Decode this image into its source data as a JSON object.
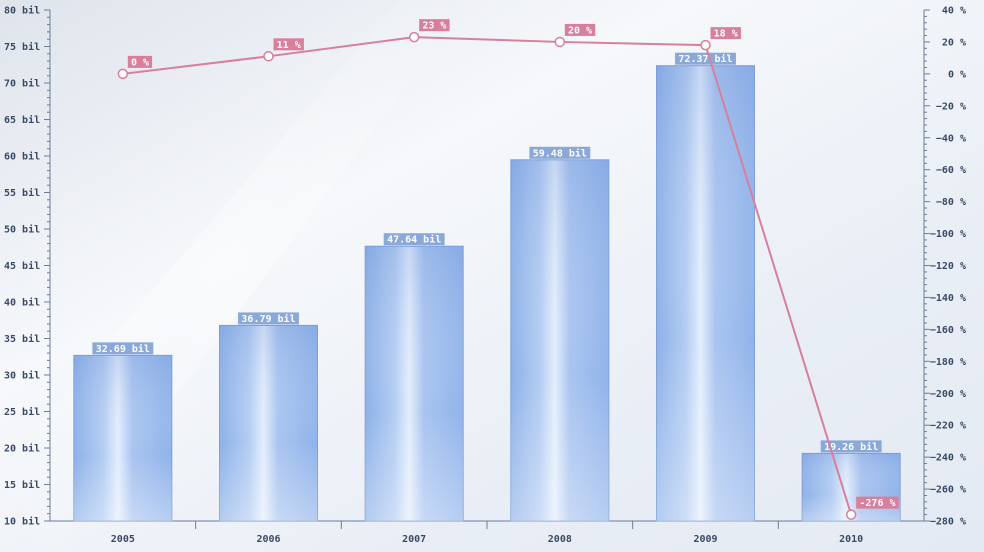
{
  "chart_data": {
    "type": "bar",
    "categories": [
      "2005",
      "2006",
      "2007",
      "2008",
      "2009",
      "2010"
    ],
    "series": [
      {
        "type": "bar",
        "axis": "left",
        "values": [
          32.69,
          36.79,
          47.64,
          59.48,
          72.37,
          19.26
        ],
        "labels": [
          "32.69 bil",
          "36.79 bil",
          "47.64 bil",
          "59.48 bil",
          "72.37 bil",
          "19.26 bil"
        ],
        "color": "#9bbcec"
      },
      {
        "type": "line",
        "axis": "right",
        "values": [
          0,
          11,
          23,
          20,
          18,
          -276
        ],
        "labels": [
          "0 %",
          "11 %",
          "23 %",
          "20 %",
          "18 %",
          "-276 %"
        ],
        "color": "#d87f9c"
      }
    ],
    "y_left": {
      "range": [
        10,
        80
      ],
      "ticks": [
        80,
        75,
        70,
        65,
        60,
        55,
        50,
        45,
        40,
        35,
        30,
        25,
        20,
        15,
        10
      ],
      "tick_labels": [
        "80 bil",
        "75 bil",
        "70 bil",
        "65 bil",
        "60 bil",
        "55 bil",
        "50 bil",
        "45 bil",
        "40 bil",
        "35 bil",
        "30 bil",
        "25 bil",
        "20 bil",
        "15 bil",
        "10 bil"
      ]
    },
    "y_right": {
      "range": [
        -280,
        40
      ],
      "ticks": [
        40,
        20,
        0,
        -20,
        -40,
        -60,
        -80,
        -100,
        -120,
        -140,
        -160,
        -180,
        -200,
        -220,
        -240,
        -260,
        -280
      ],
      "tick_labels": [
        "40 %",
        "20 %",
        "0 %",
        "−20 %",
        "−40 %",
        "−60 %",
        "−80 %",
        "−100 %",
        "−120 %",
        "−140 %",
        "−160 %",
        "−180 %",
        "−200 %",
        "−220 %",
        "−240 %",
        "−260 %",
        "−280 %"
      ]
    },
    "title": "",
    "xlabel": "",
    "ylabel": "",
    "grid": false,
    "legend": "none",
    "colors": {
      "bar_label_bg": "#8aa8d8",
      "line_label_bg": "#d87f9c",
      "axis": "#6b7d99",
      "text": "#3a4a66"
    }
  }
}
